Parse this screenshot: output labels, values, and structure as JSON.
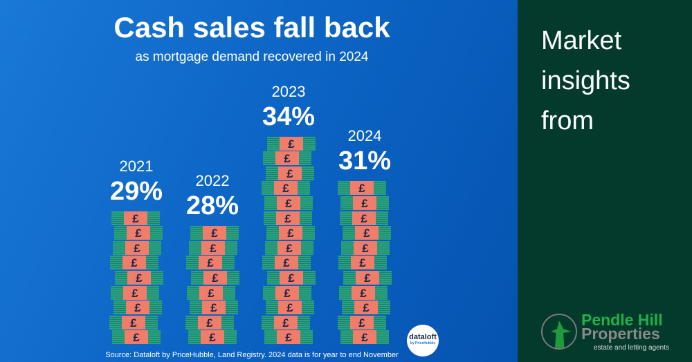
{
  "chart_data": {
    "type": "bar",
    "title": "Cash sales fall back",
    "subtitle": "as mortgage demand recovered in 2024",
    "categories": [
      "2021",
      "2022",
      "2023",
      "2024"
    ],
    "values": [
      29,
      28,
      34,
      31
    ],
    "labels": [
      "29%",
      "28%",
      "34%",
      "31%"
    ],
    "unit": "%",
    "bar_style": "stacks of banknotes with £ wrapper",
    "colors": {
      "note": "#2aa37a",
      "wrapper": "#f07d6a",
      "background": "#0c64c4"
    }
  },
  "source": "Source: Dataloft by PriceHubble, Land Registry. 2024 data is for year to end November",
  "dataloft_logo": {
    "name": "dataloft",
    "tagline": "by PriceHubble"
  },
  "sidebar": {
    "heading": "Market insights from",
    "brand_line1": "Pendle Hill",
    "brand_line2": "Properties",
    "brand_tagline": "estate and letting agents"
  }
}
